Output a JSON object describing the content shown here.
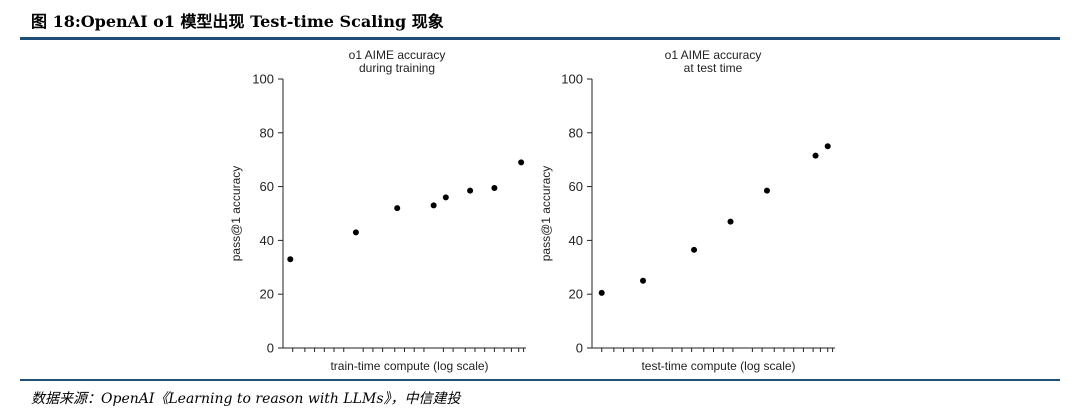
{
  "figure": {
    "title": "图 18:OpenAI o1 模型出现 Test-time Scaling 现象",
    "source": "数据来源：OpenAI《Learning to reason with LLMs》，中信建投"
  },
  "chart_data": [
    {
      "type": "scatter",
      "title": [
        "o1 AIME accuracy",
        "during training"
      ],
      "xlabel": "train-time compute (log scale)",
      "ylabel": "pass@1 accuracy",
      "x_scale": "log",
      "x_tick_labels": "none",
      "ylim": [
        0,
        100
      ],
      "yticks": [
        0,
        20,
        40,
        60,
        80,
        100
      ],
      "grid": false,
      "points": [
        {
          "x": 0.03,
          "y": 33
        },
        {
          "x": 0.3,
          "y": 43
        },
        {
          "x": 0.47,
          "y": 52
        },
        {
          "x": 0.62,
          "y": 53
        },
        {
          "x": 0.67,
          "y": 56
        },
        {
          "x": 0.77,
          "y": 58.5
        },
        {
          "x": 0.87,
          "y": 59.5
        },
        {
          "x": 0.98,
          "y": 69
        }
      ]
    },
    {
      "type": "scatter",
      "title": [
        "o1 AIME accuracy",
        "at test time"
      ],
      "xlabel": "test-time compute (log scale)",
      "ylabel": "pass@1 accuracy",
      "x_scale": "log",
      "x_tick_labels": "none",
      "ylim": [
        0,
        100
      ],
      "yticks": [
        0,
        20,
        40,
        60,
        80,
        100
      ],
      "grid": false,
      "points": [
        {
          "x": 0.04,
          "y": 20.5
        },
        {
          "x": 0.21,
          "y": 25
        },
        {
          "x": 0.42,
          "y": 36.5
        },
        {
          "x": 0.57,
          "y": 47
        },
        {
          "x": 0.72,
          "y": 58.5
        },
        {
          "x": 0.92,
          "y": 71.5
        },
        {
          "x": 0.97,
          "y": 75
        }
      ]
    }
  ]
}
